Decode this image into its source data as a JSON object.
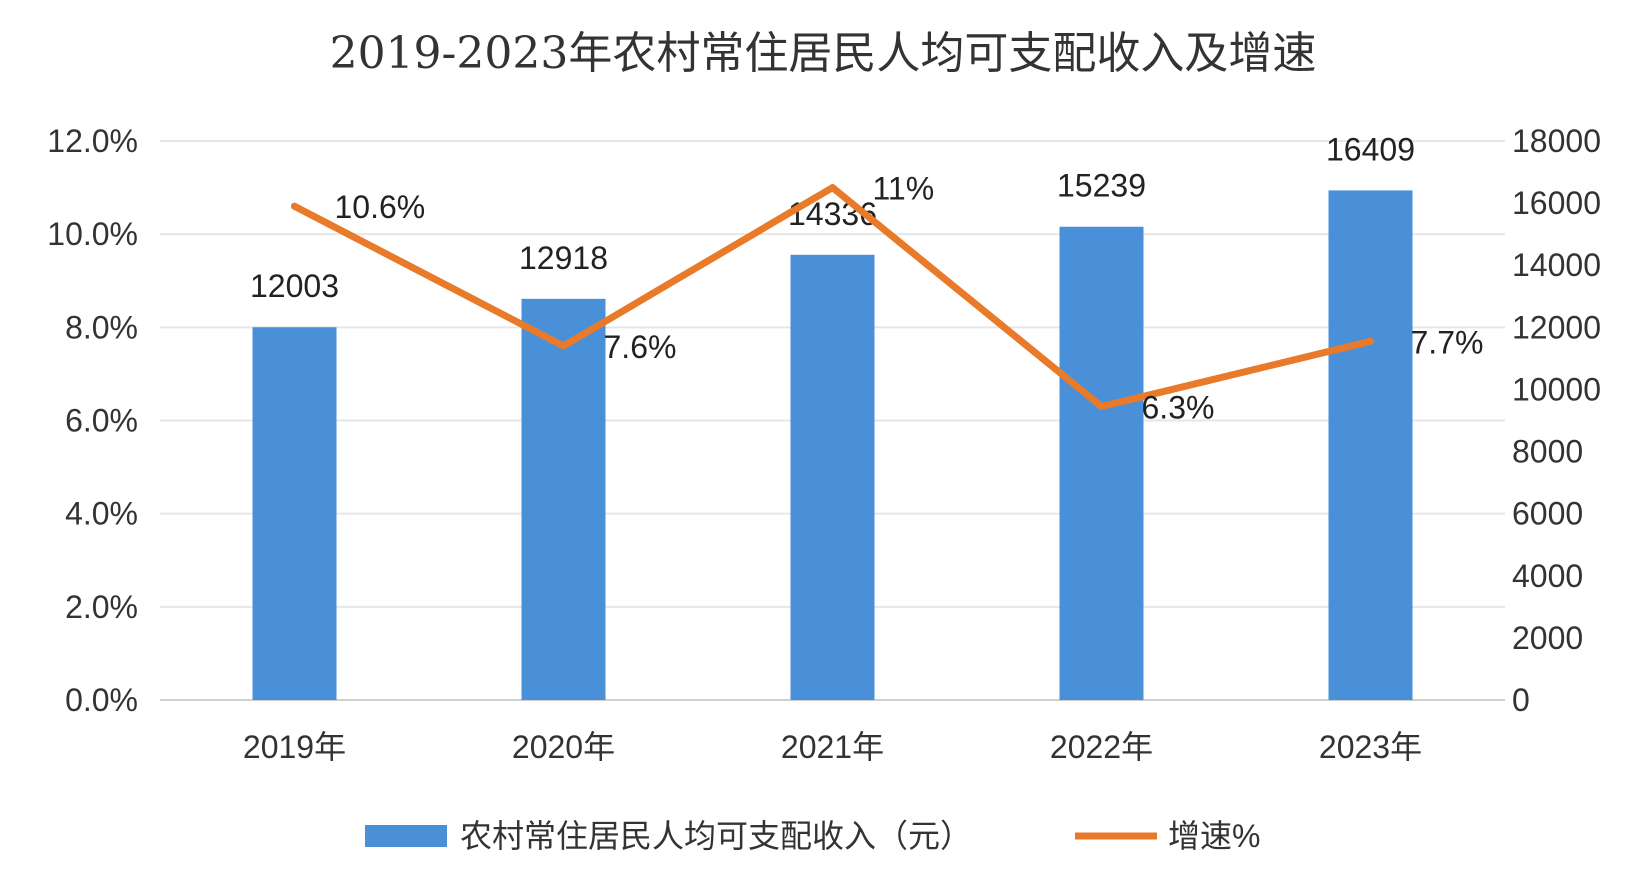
{
  "chart_data": {
    "type": "bar",
    "title": "2019-2023年农村常住居民人均可支配收入及增速",
    "categories": [
      "2019年",
      "2020年",
      "2021年",
      "2022年",
      "2023年"
    ],
    "series": [
      {
        "name": "农村常住居民人均可支配收入（元）",
        "type": "bar",
        "axis": "right",
        "color": "#4A90D9",
        "values": [
          12003,
          12918,
          14336,
          15239,
          16409
        ],
        "labels": [
          "12003",
          "12918",
          "14336",
          "15239",
          "16409"
        ]
      },
      {
        "name": "增速%",
        "type": "line",
        "axis": "left",
        "color": "#E87A2A",
        "values": [
          10.6,
          7.6,
          11,
          6.3,
          7.7
        ],
        "labels": [
          "10.6%",
          "7.6%",
          "11%",
          "6.3%",
          "7.7%"
        ]
      }
    ],
    "left_axis": {
      "ylim": [
        0,
        12
      ],
      "ticks": [
        "0.0%",
        "2.0%",
        "4.0%",
        "6.0%",
        "8.0%",
        "10.0%",
        "12.0%"
      ]
    },
    "right_axis": {
      "ylim": [
        0,
        18000
      ],
      "ticks": [
        "0",
        "2000",
        "4000",
        "6000",
        "8000",
        "10000",
        "12000",
        "14000",
        "16000",
        "18000"
      ]
    },
    "grid": true,
    "legend_position": "bottom"
  }
}
